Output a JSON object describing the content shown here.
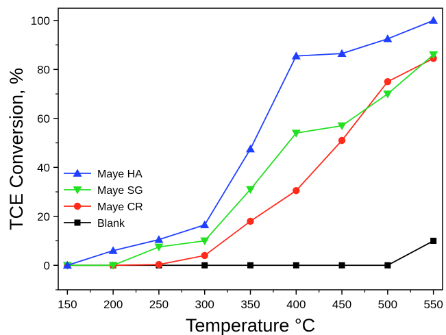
{
  "chart_data": {
    "type": "line",
    "xlabel": "Temperature °C",
    "ylabel": "TCE Conversion, %",
    "xlim": [
      140,
      560
    ],
    "ylim": [
      -10,
      105
    ],
    "x": [
      150,
      200,
      250,
      300,
      350,
      400,
      450,
      500,
      550
    ],
    "xticks": [
      150,
      200,
      250,
      300,
      350,
      400,
      450,
      500,
      550
    ],
    "yticks": [
      0,
      20,
      40,
      60,
      80,
      100
    ],
    "grid": false,
    "legend": "left",
    "series": [
      {
        "name": "Maye HA",
        "color": "#1f3fff",
        "marker": "triangle-up",
        "values": [
          0,
          6,
          10.5,
          16.5,
          47.5,
          85.5,
          86.5,
          92.5,
          100
        ]
      },
      {
        "name": "Maye SG",
        "color": "#22e022",
        "marker": "triangle-down",
        "values": [
          0,
          0,
          7.5,
          10,
          31,
          54,
          57,
          70,
          86
        ]
      },
      {
        "name": "Maye CR",
        "color": "#ff2a1a",
        "marker": "circle",
        "values": [
          0,
          0,
          0.3,
          4,
          18,
          30.5,
          51,
          75,
          84.5
        ]
      },
      {
        "name": "Blank",
        "color": "#000000",
        "marker": "square",
        "values": [
          0,
          0,
          0,
          0,
          0,
          0,
          0,
          0,
          10
        ]
      }
    ]
  }
}
